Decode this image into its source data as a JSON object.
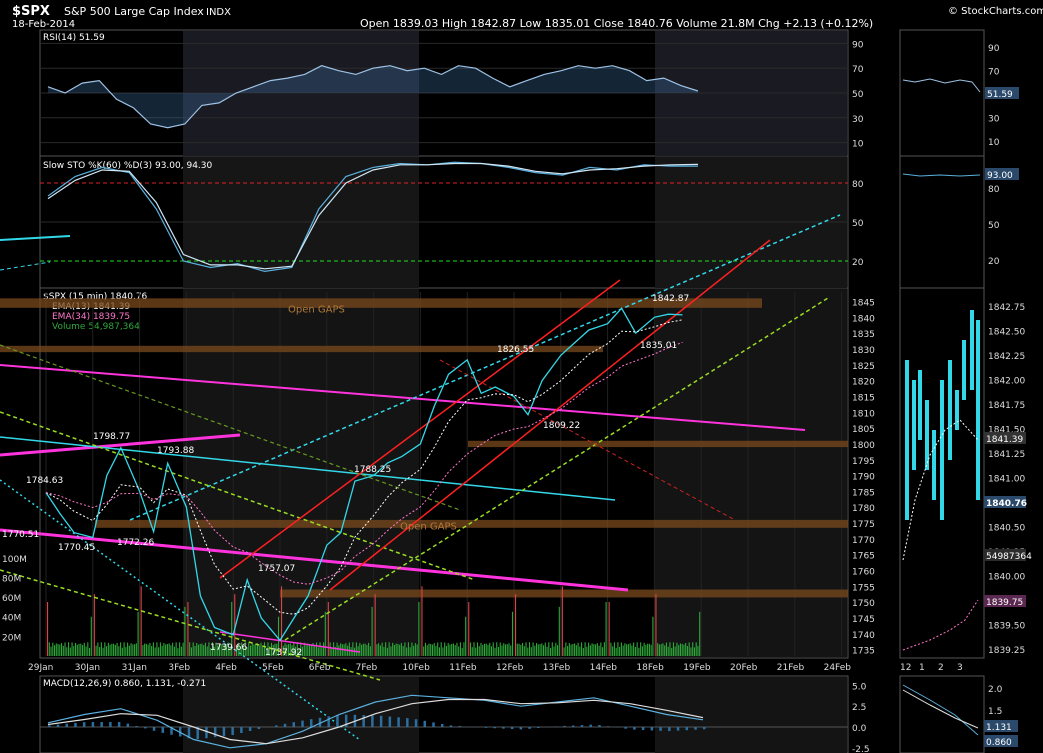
{
  "header": {
    "symbol": "$SPX",
    "name": "S&P 500 Large Cap Index",
    "exchange": "INDX",
    "date": "18-Feb-2014",
    "quote": "Open 1839.03  High 1842.87  Low 1835.01  Close 1840.76  Volume 21.8M  Chg +2.13 (+0.12%)",
    "watermark": "© StockCharts.com"
  },
  "colors": {
    "cyan": "#33d8e8",
    "magenta": "#ff33dd",
    "red": "#ff2020",
    "green": "#44dd22",
    "yellowgreen": "#99dd22",
    "gap": "#7a4a1e",
    "grid": "#2a2a2a",
    "text": "#dddddd",
    "pink": "#ff77cc",
    "volume": "#2ea83a"
  },
  "chart_data": [
    {
      "type": "line",
      "title": "RSI(14) 51.59",
      "last_value": "51.59",
      "ylim": [
        0,
        100
      ],
      "y_ticks": [
        "90",
        "70",
        "50",
        "30",
        "10"
      ],
      "reference_lines": [
        70,
        30
      ],
      "series": [
        {
          "name": "RSI(14)",
          "values": [
            55,
            50,
            58,
            60,
            45,
            38,
            25,
            22,
            25,
            40,
            42,
            50,
            55,
            60,
            62,
            65,
            72,
            68,
            65,
            70,
            72,
            68,
            70,
            65,
            72,
            70,
            62,
            55,
            60,
            65,
            68,
            72,
            70,
            72,
            68,
            60,
            62,
            56,
            51.59
          ]
        }
      ]
    },
    {
      "type": "line",
      "title": "Slow STO %K(60) %D(3) 93.00, 94.30",
      "last_values": [
        "93.00",
        "94.30"
      ],
      "ylim": [
        0,
        100
      ],
      "y_ticks": [
        "80",
        "50",
        "20"
      ],
      "reference_lines": [
        80,
        20
      ],
      "series": [
        {
          "name": "%K(60)",
          "values": [
            70,
            85,
            92,
            88,
            60,
            20,
            15,
            18,
            12,
            15,
            60,
            85,
            92,
            95,
            94,
            96,
            95,
            92,
            88,
            86,
            92,
            90,
            94,
            93,
            93
          ]
        },
        {
          "name": "%D(3)",
          "values": [
            68,
            82,
            90,
            89,
            65,
            25,
            17,
            17,
            14,
            16,
            55,
            80,
            90,
            94,
            94,
            95,
            95,
            93,
            89,
            87,
            90,
            91,
            93,
            94,
            94.3
          ]
        }
      ]
    },
    {
      "type": "line",
      "title": "$SPX (15 min) 1840.76",
      "legend": [
        {
          "label": "$SPX (15 min) 1840.76",
          "color": "#33d8e8"
        },
        {
          "label": "EMA(13) 1841.39",
          "color": "#ffffff"
        },
        {
          "label": "EMA(34) 1839.75",
          "color": "#ff77cc"
        },
        {
          "label": "Volume 54,987,364",
          "color": "#2ea83a"
        }
      ],
      "ylim": [
        1733,
        1848
      ],
      "y_ticks": [
        "1845",
        "1840",
        "1835",
        "1830",
        "1825",
        "1820",
        "1815",
        "1810",
        "1805",
        "1800",
        "1795",
        "1790",
        "1785",
        "1780",
        "1775",
        "1770",
        "1765",
        "1760",
        "1755",
        "1750",
        "1745",
        "1740",
        "1735"
      ],
      "x_ticks": [
        "29Jan",
        "30Jan",
        "31Jan",
        "3Feb",
        "4Feb",
        "5Feb",
        "6Feb",
        "7Feb",
        "10Feb",
        "11Feb",
        "12Feb",
        "13Feb",
        "14Feb",
        "18Feb",
        "19Feb",
        "20Feb",
        "21Feb",
        "24Feb"
      ],
      "volume_ticks": [
        "100M",
        "80M",
        "60M",
        "40M",
        "20M"
      ],
      "annotations": [
        "1784.63",
        "1770.51",
        "1770.45",
        "1798.77",
        "1793.88",
        "1772.26",
        "1739.66",
        "1757.07",
        "1737.92",
        "1788.25",
        "1826.55",
        "1809.22",
        "1842.87",
        "1835.01"
      ],
      "gap_labels": [
        "Open GAPS",
        "Open GAPS"
      ],
      "series": [
        {
          "name": "$SPX",
          "x": [
            0,
            0.3,
            0.6,
            1.0,
            1.3,
            1.6,
            2.0,
            2.3,
            2.6,
            3.0,
            3.3,
            3.6,
            4.0,
            4.3,
            4.6,
            5.0,
            5.3,
            5.6,
            6.0,
            6.3,
            6.6,
            7.0,
            7.3,
            7.6,
            8.0,
            8.3,
            8.6,
            9.0,
            9.3,
            9.6,
            10.0,
            10.3,
            10.6,
            11.0,
            11.3,
            11.6,
            12.0,
            12.3,
            12.6,
            13.0,
            13.3,
            13.6
          ],
          "values": [
            1784.63,
            1778,
            1772,
            1770.45,
            1790,
            1798.77,
            1785,
            1772.26,
            1793.88,
            1780,
            1752,
            1742,
            1739.66,
            1757.07,
            1745,
            1737.92,
            1745,
            1752,
            1768,
            1772,
            1788.25,
            1790,
            1794,
            1796,
            1800,
            1812,
            1822,
            1826.55,
            1816,
            1818,
            1815,
            1809.22,
            1820,
            1828,
            1832,
            1836,
            1838,
            1842.87,
            1835.01,
            1840,
            1841,
            1840.76
          ]
        }
      ]
    },
    {
      "type": "line",
      "title": "MACD(12,26,9) 0.860, 1.131, -0.271",
      "ylim": [
        -3,
        6
      ],
      "y_ticks": [
        "5.0",
        "2.5",
        "0.0",
        "-2.5"
      ],
      "series": [
        {
          "name": "MACD",
          "values": [
            0.5,
            1.5,
            2.2,
            0.8,
            -1.5,
            -2.5,
            -2.0,
            -0.5,
            1.5,
            3.0,
            3.8,
            3.5,
            3.2,
            2.5,
            3.0,
            3.5,
            2.5,
            1.5,
            0.86
          ]
        },
        {
          "name": "Signal",
          "values": [
            0.3,
            0.9,
            1.6,
            1.4,
            0.0,
            -1.5,
            -2.0,
            -1.3,
            0.0,
            1.6,
            2.8,
            3.3,
            3.3,
            2.8,
            2.9,
            3.2,
            2.8,
            2.0,
            1.131
          ]
        }
      ]
    }
  ],
  "right_panel": {
    "price_ticks": [
      "1842.75",
      "1842.50",
      "1842.25",
      "1842.00",
      "1841.75",
      "1841.50",
      "1841.25",
      "1841.00",
      "1840.75",
      "1840.50",
      "1840.25",
      "1840.00",
      "1839.75",
      "1839.50",
      "1839.25"
    ],
    "price_tag": "1840.76",
    "ema13_tag": "1841.39",
    "ema34_tag": "1839.75",
    "volume_tag": "54987364",
    "x_ticks": [
      "12",
      "1",
      "2",
      "3"
    ],
    "rsi_ticks": [
      "90",
      "70",
      "50",
      "30",
      "10"
    ],
    "rsi_tag": "51.59",
    "sto_ticks": [
      "80",
      "50",
      "20"
    ],
    "sto_tag": "93.00",
    "macd_ticks": [
      "2.0",
      "1.5"
    ],
    "macd_tags": [
      "1.131",
      "0.860"
    ]
  }
}
